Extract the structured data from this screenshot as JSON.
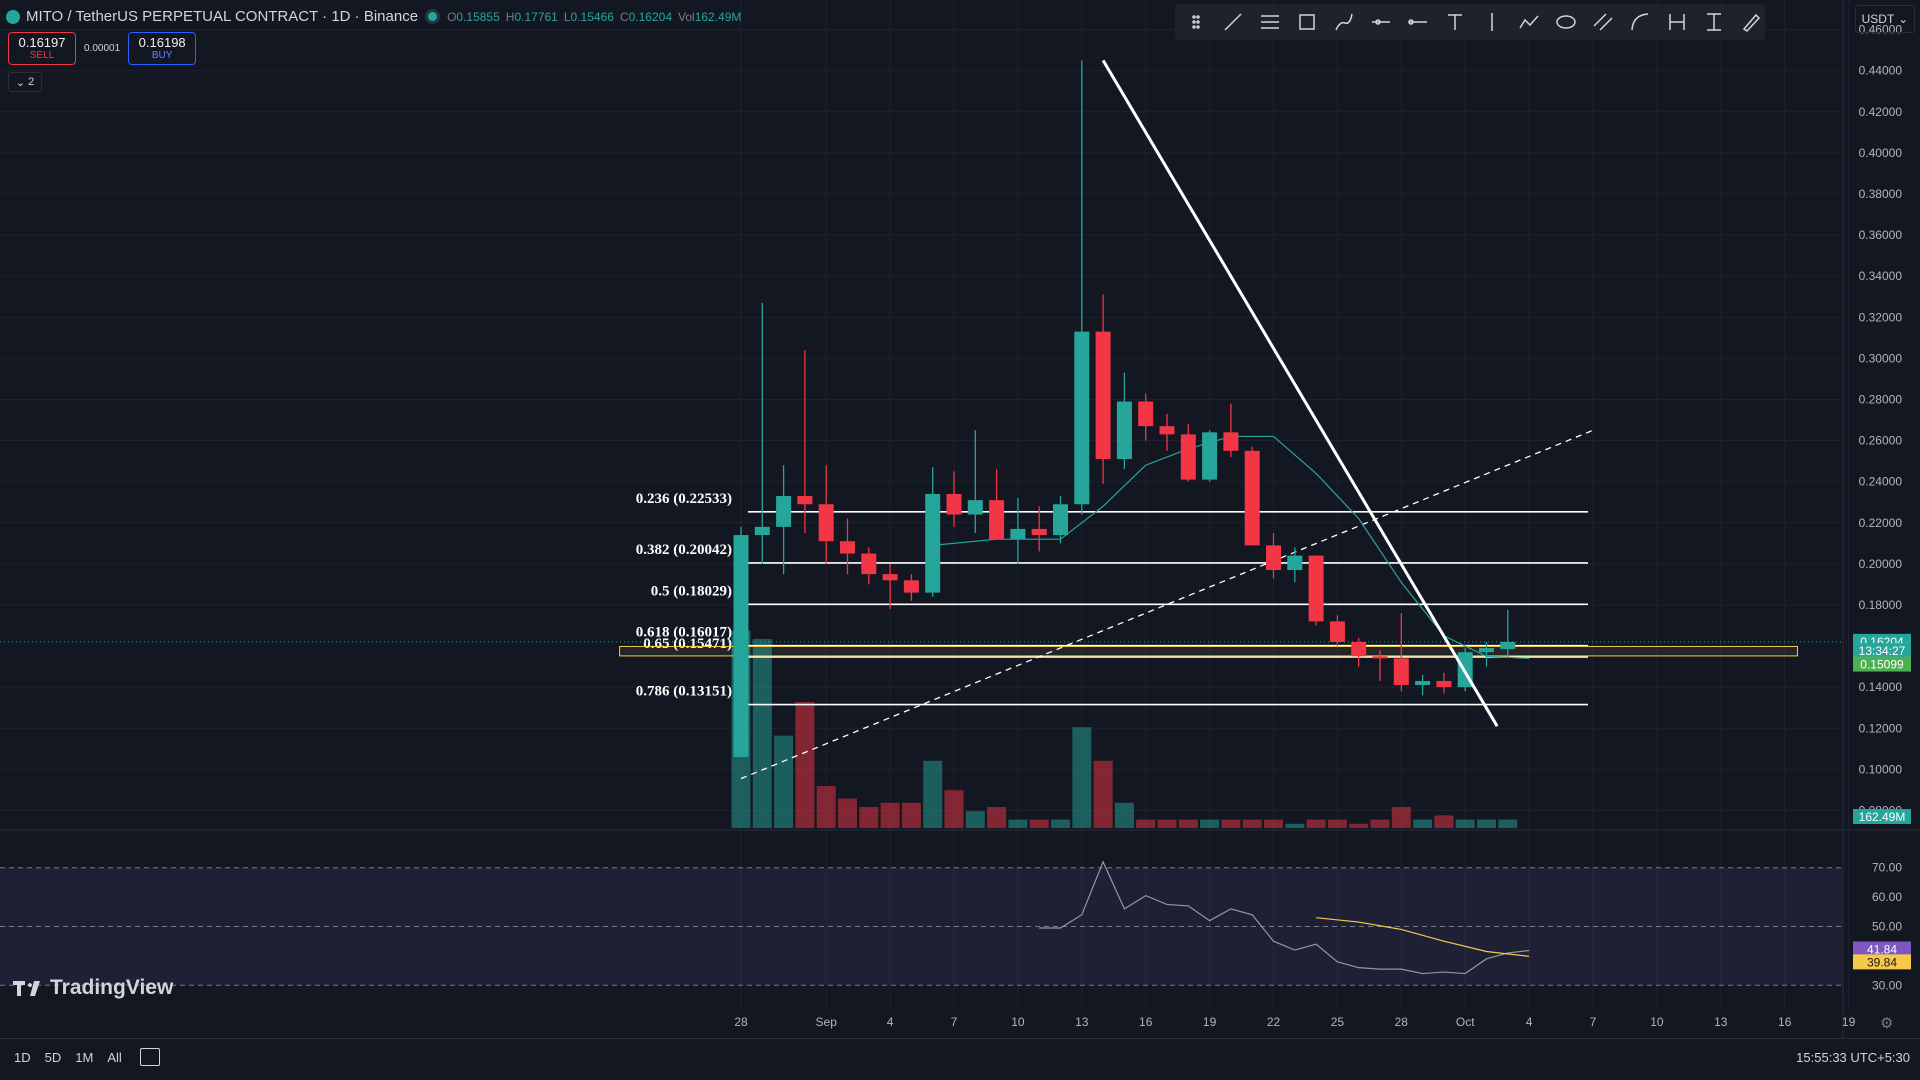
{
  "header": {
    "symbol": "MITO / TetherUS PERPETUAL CONTRACT · 1D · Binance",
    "ohlc": {
      "o_label": "O",
      "o": "0.15855",
      "h_label": "H",
      "h": "0.17761",
      "l_label": "L",
      "l": "0.15466",
      "c_label": "C",
      "c": "0.16204",
      "vol_label": "Vol",
      "vol": "162.49M"
    }
  },
  "trade": {
    "sell_price": "0.16197",
    "sell_label": "SELL",
    "spread": "0.00001",
    "buy_price": "0.16198",
    "buy_label": "BUY"
  },
  "indicator_toggle": "2",
  "toolbar": {
    "icons": [
      "trend-line-icon",
      "horizontal-lines-icon",
      "rectangle-icon",
      "brush-icon",
      "horizontal-ray-icon",
      "horizontal-line-icon",
      "text-icon",
      "vertical-line-icon",
      "path-icon",
      "ellipse-icon",
      "parallel-channel-icon",
      "curve-icon",
      "price-range-icon",
      "measure-icon",
      "pen-icon"
    ]
  },
  "currency": "USDT",
  "branding": "TradingView",
  "bottom": {
    "timeframes": [
      "1D",
      "5D",
      "1M",
      "All"
    ],
    "clock": "15:55:33 UTC+5:30"
  },
  "colors": {
    "up": "#26a69a",
    "down": "#f23645",
    "background": "#131722",
    "rsi": "#7e57c2",
    "rsi_ma": "#f7c948"
  },
  "chart_data": {
    "type": "candlestick",
    "yaxis": {
      "min": 0.07,
      "max": 0.47,
      "ticks": [
        "0.46000",
        "0.44000",
        "0.42000",
        "0.40000",
        "0.38000",
        "0.36000",
        "0.34000",
        "0.32000",
        "0.30000",
        "0.28000",
        "0.26000",
        "0.24000",
        "0.22000",
        "0.20000",
        "0.18000",
        "0.14000",
        "0.12000",
        "0.10000",
        "0.08000"
      ]
    },
    "xaxis": {
      "labels": [
        {
          "day": 0,
          "text": "28"
        },
        {
          "day": 4,
          "text": "Sep"
        },
        {
          "day": 7,
          "text": "4"
        },
        {
          "day": 10,
          "text": "7"
        },
        {
          "day": 13,
          "text": "10"
        },
        {
          "day": 16,
          "text": "13"
        },
        {
          "day": 19,
          "text": "16"
        },
        {
          "day": 22,
          "text": "19"
        },
        {
          "day": 25,
          "text": "22"
        },
        {
          "day": 28,
          "text": "25"
        },
        {
          "day": 31,
          "text": "28"
        },
        {
          "day": 34,
          "text": "Oct"
        },
        {
          "day": 37,
          "text": "4"
        },
        {
          "day": 40,
          "text": "7"
        },
        {
          "day": 43,
          "text": "10"
        },
        {
          "day": 46,
          "text": "13"
        },
        {
          "day": 49,
          "text": "16"
        },
        {
          "day": 52,
          "text": "19"
        }
      ]
    },
    "candles": [
      {
        "o": 0.106,
        "h": 0.218,
        "l": 0.106,
        "c": 0.214,
        "v": 47
      },
      {
        "o": 0.214,
        "h": 0.327,
        "l": 0.2,
        "c": 0.218,
        "v": 45
      },
      {
        "o": 0.218,
        "h": 0.248,
        "l": 0.195,
        "c": 0.233,
        "v": 22
      },
      {
        "o": 0.233,
        "h": 0.304,
        "l": 0.215,
        "c": 0.229,
        "v": 30
      },
      {
        "o": 0.229,
        "h": 0.248,
        "l": 0.2,
        "c": 0.211,
        "v": 10
      },
      {
        "o": 0.211,
        "h": 0.222,
        "l": 0.195,
        "c": 0.205,
        "v": 7
      },
      {
        "o": 0.205,
        "h": 0.208,
        "l": 0.19,
        "c": 0.195,
        "v": 5
      },
      {
        "o": 0.195,
        "h": 0.2,
        "l": 0.178,
        "c": 0.192,
        "v": 6
      },
      {
        "o": 0.192,
        "h": 0.195,
        "l": 0.182,
        "c": 0.186,
        "v": 6
      },
      {
        "o": 0.186,
        "h": 0.247,
        "l": 0.184,
        "c": 0.234,
        "v": 16
      },
      {
        "o": 0.234,
        "h": 0.245,
        "l": 0.218,
        "c": 0.224,
        "v": 9
      },
      {
        "o": 0.224,
        "h": 0.265,
        "l": 0.215,
        "c": 0.231,
        "v": 4
      },
      {
        "o": 0.231,
        "h": 0.246,
        "l": 0.213,
        "c": 0.212,
        "v": 5
      },
      {
        "o": 0.212,
        "h": 0.232,
        "l": 0.2,
        "c": 0.217,
        "v": 2
      },
      {
        "o": 0.217,
        "h": 0.228,
        "l": 0.206,
        "c": 0.214,
        "v": 2
      },
      {
        "o": 0.214,
        "h": 0.233,
        "l": 0.21,
        "c": 0.229,
        "v": 2
      },
      {
        "o": 0.229,
        "h": 0.445,
        "l": 0.224,
        "c": 0.313,
        "v": 24
      },
      {
        "o": 0.313,
        "h": 0.331,
        "l": 0.239,
        "c": 0.251,
        "v": 16
      },
      {
        "o": 0.251,
        "h": 0.293,
        "l": 0.246,
        "c": 0.279,
        "v": 6
      },
      {
        "o": 0.279,
        "h": 0.283,
        "l": 0.26,
        "c": 0.267,
        "v": 2
      },
      {
        "o": 0.267,
        "h": 0.273,
        "l": 0.255,
        "c": 0.263,
        "v": 2
      },
      {
        "o": 0.263,
        "h": 0.268,
        "l": 0.24,
        "c": 0.241,
        "v": 2
      },
      {
        "o": 0.241,
        "h": 0.265,
        "l": 0.24,
        "c": 0.264,
        "v": 2
      },
      {
        "o": 0.264,
        "h": 0.278,
        "l": 0.252,
        "c": 0.255,
        "v": 2
      },
      {
        "o": 0.255,
        "h": 0.257,
        "l": 0.209,
        "c": 0.209,
        "v": 2
      },
      {
        "o": 0.209,
        "h": 0.215,
        "l": 0.193,
        "c": 0.197,
        "v": 2
      },
      {
        "o": 0.197,
        "h": 0.208,
        "l": 0.191,
        "c": 0.204,
        "v": 1
      },
      {
        "o": 0.204,
        "h": 0.204,
        "l": 0.17,
        "c": 0.172,
        "v": 2
      },
      {
        "o": 0.172,
        "h": 0.175,
        "l": 0.16,
        "c": 0.162,
        "v": 2
      },
      {
        "o": 0.162,
        "h": 0.164,
        "l": 0.15,
        "c": 0.155,
        "v": 1
      },
      {
        "o": 0.155,
        "h": 0.158,
        "l": 0.143,
        "c": 0.154,
        "v": 2
      },
      {
        "o": 0.154,
        "h": 0.176,
        "l": 0.138,
        "c": 0.141,
        "v": 5
      },
      {
        "o": 0.141,
        "h": 0.146,
        "l": 0.136,
        "c": 0.143,
        "v": 2
      },
      {
        "o": 0.143,
        "h": 0.147,
        "l": 0.137,
        "c": 0.14,
        "v": 3
      },
      {
        "o": 0.14,
        "h": 0.159,
        "l": 0.138,
        "c": 0.157,
        "v": 2
      },
      {
        "o": 0.157,
        "h": 0.162,
        "l": 0.15,
        "c": 0.159,
        "v": 2
      },
      {
        "o": 0.15855,
        "h": 0.17761,
        "l": 0.15466,
        "c": 0.16204,
        "v": 2
      }
    ],
    "ma_line": [
      {
        "day": 9,
        "y": 0.209
      },
      {
        "day": 12,
        "y": 0.212
      },
      {
        "day": 15,
        "y": 0.212
      },
      {
        "day": 17,
        "y": 0.228
      },
      {
        "day": 19,
        "y": 0.248
      },
      {
        "day": 21,
        "y": 0.256
      },
      {
        "day": 23,
        "y": 0.262
      },
      {
        "day": 25,
        "y": 0.262
      },
      {
        "day": 27,
        "y": 0.244
      },
      {
        "day": 29,
        "y": 0.222
      },
      {
        "day": 31,
        "y": 0.191
      },
      {
        "day": 33,
        "y": 0.165
      },
      {
        "day": 35,
        "y": 0.155
      },
      {
        "day": 37,
        "y": 0.154
      }
    ],
    "fib_levels": [
      {
        "label": "0.236 (0.22533)",
        "y": 0.22533
      },
      {
        "label": "0.382 (0.20042)",
        "y": 0.20042
      },
      {
        "label": "0.5 (0.18029)",
        "y": 0.18029
      },
      {
        "label": "0.618 (0.16017)",
        "y": 0.16017
      },
      {
        "label": "0.65 (0.15471)",
        "y": 0.15471
      },
      {
        "label": "0.786 (0.13151)",
        "y": 0.13151
      }
    ],
    "zone": {
      "y_top": 0.1598,
      "y_bottom": 0.1552,
      "day_start": -5.7,
      "day_end": 49.6
    },
    "trendline": {
      "day_start": 17.0,
      "y_start": 0.445,
      "day_end": 35.5,
      "y_end": 0.121
    },
    "dashed_line": {
      "day_start": 0,
      "y_start": 0.0955,
      "day_end": 40,
      "y_end": 0.265
    },
    "price_labels": [
      {
        "text": "0.16204",
        "y": 0.16204,
        "color": "#26a69a"
      },
      {
        "text": "13:34:27",
        "y": 0.1575,
        "color": "#26a69a"
      },
      {
        "text": "0.15099",
        "y": 0.15099,
        "color": "#4caf50"
      }
    ],
    "volume_label": "162.49M",
    "rsi": {
      "ticks": [
        "70.00",
        "60.00",
        "50.00",
        "30.00"
      ],
      "line": [
        {
          "day": 14,
          "y": 49.5
        },
        {
          "day": 15,
          "y": 49.5
        },
        {
          "day": 16,
          "y": 54
        },
        {
          "day": 17,
          "y": 72
        },
        {
          "day": 18,
          "y": 56
        },
        {
          "day": 19,
          "y": 60.5
        },
        {
          "day": 20,
          "y": 57.5
        },
        {
          "day": 21,
          "y": 57
        },
        {
          "day": 22,
          "y": 52
        },
        {
          "day": 23,
          "y": 56
        },
        {
          "day": 24,
          "y": 54
        },
        {
          "day": 25,
          "y": 45
        },
        {
          "day": 26,
          "y": 42
        },
        {
          "day": 27,
          "y": 44
        },
        {
          "day": 28,
          "y": 38
        },
        {
          "day": 29,
          "y": 36
        },
        {
          "day": 30,
          "y": 35.5
        },
        {
          "day": 31,
          "y": 35.5
        },
        {
          "day": 32,
          "y": 34
        },
        {
          "day": 33,
          "y": 34.5
        },
        {
          "day": 34,
          "y": 34
        },
        {
          "day": 35,
          "y": 39
        },
        {
          "day": 36,
          "y": 41
        },
        {
          "day": 37,
          "y": 41.84
        }
      ],
      "ma": [
        {
          "day": 27,
          "y": 53
        },
        {
          "day": 29,
          "y": 51.5
        },
        {
          "day": 31,
          "y": 49
        },
        {
          "day": 33,
          "y": 45
        },
        {
          "day": 35,
          "y": 41.5
        },
        {
          "day": 37,
          "y": 39.84
        }
      ],
      "value": "41.84",
      "ma_value": "39.84"
    }
  }
}
